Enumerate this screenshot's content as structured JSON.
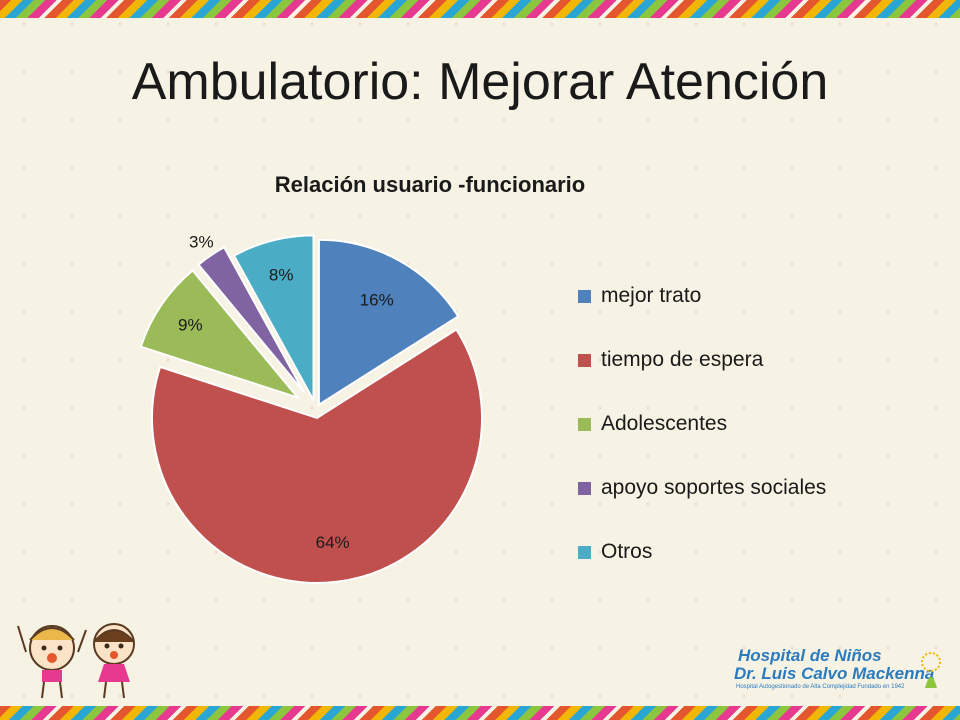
{
  "slide": {
    "title": "Ambulatorio: Mejorar Atención"
  },
  "chart_data": {
    "type": "pie",
    "title": "Relación usuario -funcionario",
    "exploded": true,
    "legend_position": "right",
    "slices": [
      {
        "label": "mejor trato",
        "value": 16,
        "display": "16%",
        "color": "#4f81bd"
      },
      {
        "label": "tiempo de espera",
        "value": 64,
        "display": "64%",
        "color": "#c0504d"
      },
      {
        "label": "Adolescentes",
        "value": 9,
        "display": "9%",
        "color": "#9bbb59"
      },
      {
        "label": "apoyo soportes sociales",
        "value": 3,
        "display": "3%",
        "color": "#8064a2"
      },
      {
        "label": "Otros",
        "value": 8,
        "display": "8%",
        "color": "#4bacc6"
      }
    ]
  },
  "logo": {
    "line1": "Hospital de Niños",
    "line2": "Dr. Luis Calvo Mackenna",
    "line3": "Hospital Autogestionado de Alta Complejidad Fundado en 1942"
  }
}
